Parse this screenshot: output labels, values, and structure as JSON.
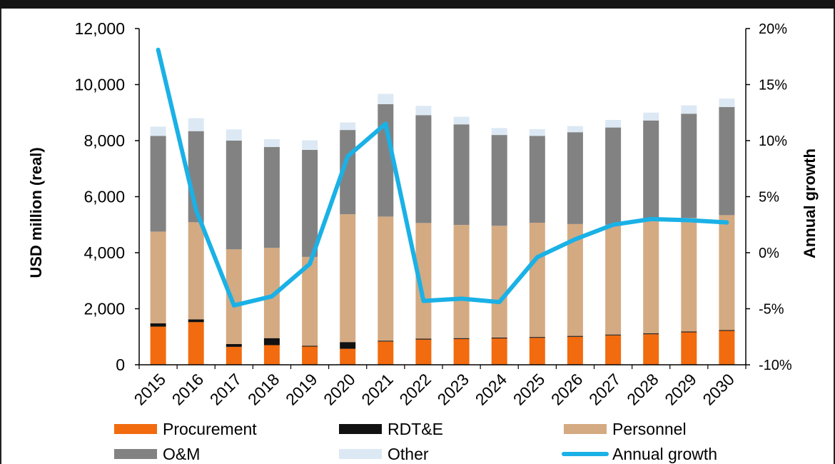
{
  "chart_data": {
    "type": "bar",
    "stacked": true,
    "categories": [
      "2015",
      "2016",
      "2017",
      "2018",
      "2019",
      "2020",
      "2021",
      "2022",
      "2023",
      "2024",
      "2025",
      "2026",
      "2027",
      "2028",
      "2029",
      "2030"
    ],
    "ylabel": "USD million (real)",
    "y2label": "Annual growth",
    "ylim": [
      0,
      12000
    ],
    "yticks": [
      "0",
      "2,000",
      "4,000",
      "6,000",
      "8,000",
      "10,000",
      "12,000"
    ],
    "y2lim": [
      -10,
      20
    ],
    "y2ticks": [
      "-10%",
      "-5%",
      "0%",
      "5%",
      "10%",
      "15%",
      "20%"
    ],
    "grid": false,
    "legend_position": "bottom",
    "series": [
      {
        "name": "Procurement",
        "color": "#f26b0f",
        "values": [
          1360,
          1520,
          640,
          700,
          650,
          570,
          830,
          900,
          920,
          940,
          960,
          1000,
          1050,
          1090,
          1160,
          1210
        ]
      },
      {
        "name": "RDT&E",
        "color": "#111111",
        "values": [
          120,
          100,
          100,
          250,
          30,
          240,
          30,
          30,
          30,
          30,
          30,
          30,
          30,
          30,
          30,
          30
        ]
      },
      {
        "name": "Personnel",
        "color": "#d4aa82",
        "values": [
          3270,
          3470,
          3380,
          3220,
          3170,
          4560,
          4430,
          4130,
          4040,
          3990,
          4080,
          3990,
          3920,
          4020,
          4050,
          4100
        ]
      },
      {
        "name": "O&M",
        "color": "#828282",
        "values": [
          3420,
          3250,
          3880,
          3600,
          3820,
          3010,
          4010,
          3850,
          3590,
          3240,
          3100,
          3280,
          3470,
          3580,
          3720,
          3860
        ]
      },
      {
        "name": "Other",
        "color": "#dce9f4",
        "values": [
          330,
          460,
          400,
          280,
          340,
          270,
          370,
          330,
          270,
          250,
          240,
          220,
          270,
          280,
          300,
          300
        ]
      }
    ],
    "line_series": {
      "name": "Annual growth",
      "color": "#1ab1e6",
      "axis": "right",
      "unit": "%",
      "values": [
        18.1,
        3.8,
        -4.7,
        -3.9,
        -1.0,
        8.6,
        11.5,
        -4.3,
        -4.1,
        -4.4,
        -0.4,
        1.2,
        2.5,
        3.0,
        2.9,
        2.7
      ]
    }
  }
}
